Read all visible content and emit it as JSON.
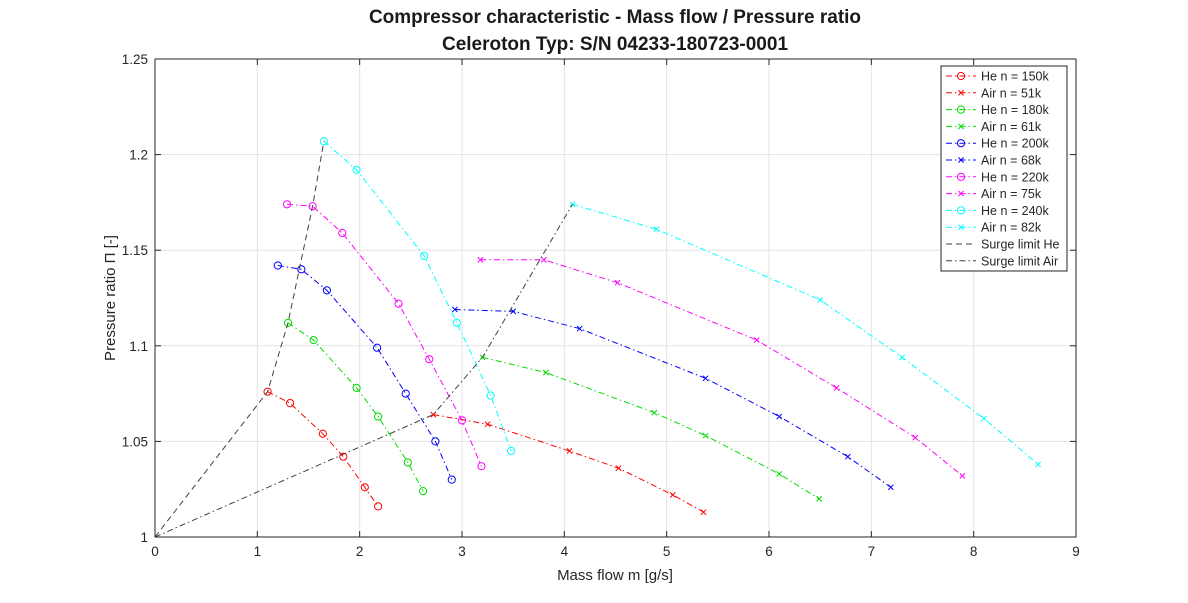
{
  "chart_data": {
    "type": "line",
    "title": "Compressor characteristic - Mass flow / Pressure ratio",
    "subtitle": "Celeroton Typ: S/N 04233-180723-0001",
    "xlabel": "Mass flow m [g/s]",
    "ylabel": "Pressure ratio Π [-]",
    "xlim": [
      0,
      9
    ],
    "ylim": [
      1,
      1.25
    ],
    "xticks": [
      "0",
      "1",
      "2",
      "3",
      "4",
      "5",
      "6",
      "7",
      "8",
      "9"
    ],
    "yticks": [
      "1",
      "1.05",
      "1.1",
      "1.15",
      "1.2",
      "1.25"
    ],
    "grid": true,
    "legend_position": "top-right",
    "series": [
      {
        "name": "He n = 150k",
        "color": "#ff0000",
        "marker": "circle",
        "dash": "dashdot",
        "x": [
          1.1,
          1.32,
          1.64,
          1.84,
          2.05,
          2.18
        ],
        "y": [
          1.076,
          1.07,
          1.054,
          1.042,
          1.026,
          1.016
        ]
      },
      {
        "name": "Air n = 51k",
        "color": "#ff0000",
        "marker": "x",
        "dash": "dashdot",
        "x": [
          2.72,
          3.25,
          4.05,
          4.53,
          5.06,
          5.36
        ],
        "y": [
          1.064,
          1.059,
          1.045,
          1.036,
          1.022,
          1.013
        ]
      },
      {
        "name": "He n = 180k",
        "color": "#00dd00",
        "marker": "circle",
        "dash": "dashdot",
        "x": [
          1.3,
          1.55,
          1.97,
          2.18,
          2.47,
          2.62
        ],
        "y": [
          1.112,
          1.103,
          1.078,
          1.063,
          1.039,
          1.024
        ]
      },
      {
        "name": "Air n = 61k",
        "color": "#00dd00",
        "marker": "x",
        "dash": "dashdot",
        "x": [
          3.2,
          3.82,
          4.88,
          5.38,
          6.1,
          6.49
        ],
        "y": [
          1.094,
          1.086,
          1.065,
          1.053,
          1.033,
          1.02
        ]
      },
      {
        "name": "He n = 200k",
        "color": "#0000ff",
        "marker": "circle",
        "dash": "dashdot",
        "x": [
          1.2,
          1.43,
          1.68,
          2.17,
          2.45,
          2.74,
          2.9
        ],
        "y": [
          1.142,
          1.14,
          1.129,
          1.099,
          1.075,
          1.05,
          1.03
        ]
      },
      {
        "name": "Air n = 68k",
        "color": "#0000ff",
        "marker": "x",
        "dash": "dashdot",
        "x": [
          2.93,
          3.5,
          4.15,
          5.38,
          6.1,
          6.77,
          7.19
        ],
        "y": [
          1.119,
          1.118,
          1.109,
          1.083,
          1.063,
          1.042,
          1.026
        ]
      },
      {
        "name": "He n = 220k",
        "color": "#ff00ff",
        "marker": "circle",
        "dash": "dashdot",
        "x": [
          1.29,
          1.54,
          1.83,
          2.38,
          2.68,
          3.0,
          3.19
        ],
        "y": [
          1.174,
          1.173,
          1.159,
          1.122,
          1.093,
          1.061,
          1.037
        ]
      },
      {
        "name": "Air n = 75k",
        "color": "#ff00ff",
        "marker": "x",
        "dash": "dashdot",
        "x": [
          3.18,
          3.8,
          4.52,
          5.88,
          6.66,
          7.43,
          7.89
        ],
        "y": [
          1.145,
          1.145,
          1.133,
          1.103,
          1.078,
          1.052,
          1.032
        ]
      },
      {
        "name": "He n = 240k",
        "color": "#00ffff",
        "marker": "circle",
        "dash": "dashdot",
        "x": [
          1.65,
          1.97,
          2.63,
          2.95,
          3.28,
          3.48
        ],
        "y": [
          1.207,
          1.192,
          1.147,
          1.112,
          1.074,
          1.045
        ]
      },
      {
        "name": "Air n = 82k",
        "color": "#00ffff",
        "marker": "x",
        "dash": "dashdot",
        "x": [
          4.08,
          4.9,
          6.5,
          7.3,
          8.1,
          8.63
        ],
        "y": [
          1.174,
          1.161,
          1.124,
          1.094,
          1.062,
          1.038
        ]
      },
      {
        "name": "Surge limit He",
        "color": "#404040",
        "marker": "none",
        "dash": "dash",
        "x": [
          0,
          1.1,
          1.3,
          1.54,
          1.65
        ],
        "y": [
          1,
          1.076,
          1.112,
          1.173,
          1.207
        ]
      },
      {
        "name": "Surge limit Air",
        "color": "#404040",
        "marker": "none",
        "dash": "dashdot",
        "x": [
          0,
          2.72,
          3.2,
          4.08
        ],
        "y": [
          1,
          1.064,
          1.094,
          1.174
        ]
      }
    ]
  }
}
